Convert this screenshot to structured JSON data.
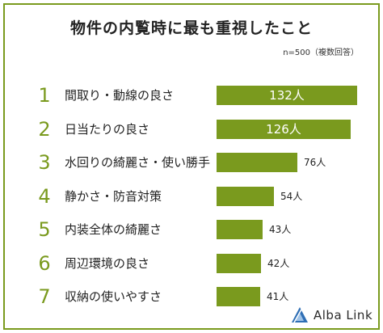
{
  "chart_data": {
    "type": "bar",
    "orientation": "horizontal",
    "title": "物件の内覧時に最も重視したこと",
    "note": "n=500（複数回答）",
    "ranks": [
      "1",
      "2",
      "3",
      "4",
      "5",
      "6",
      "7"
    ],
    "categories": [
      "間取り・動線の良さ",
      "日当たりの良さ",
      "水回りの綺麗さ・使い勝手",
      "静かさ・防音対策",
      "内装全体の綺麗さ",
      "周辺環境の良さ",
      "収納の使いやすさ"
    ],
    "values": [
      132,
      126,
      76,
      54,
      43,
      42,
      41
    ],
    "value_labels": [
      "132人",
      "126人",
      "76人",
      "54人",
      "43人",
      "42人",
      "41人"
    ],
    "xlim": [
      0,
      132
    ],
    "grid": false,
    "legend": "none",
    "bar_color": "#7a9a1e",
    "rank_color": "#7a9a1e"
  },
  "brand": {
    "name": "Alba Link",
    "logo_icon": "triangle-logo-icon"
  }
}
